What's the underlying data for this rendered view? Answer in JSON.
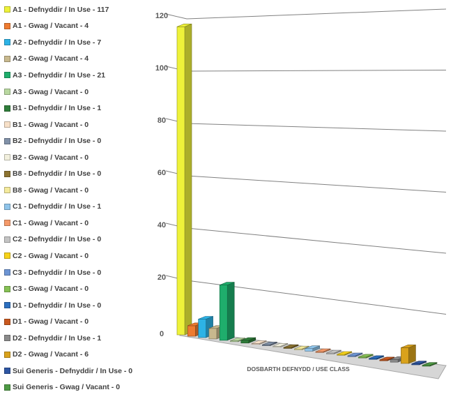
{
  "chart_data": {
    "type": "bar",
    "subtype": "3d-column",
    "xlabel": "DOSBARTH DEFNYDD / USE CLASS",
    "ylim": [
      0,
      120
    ],
    "yticks": [
      "0",
      "20",
      "40",
      "60",
      "80",
      "100",
      "120"
    ],
    "grid": true,
    "legend_position": "left",
    "series": [
      {
        "label": "A1 - Defnyddir / In Use -  117",
        "value": 117,
        "color": "#eef23a"
      },
      {
        "label": "A1 - Gwag / Vacant - 4",
        "value": 4,
        "color": "#ee7b30"
      },
      {
        "label": "A2 - Defnyddir / In Use - 7",
        "value": 7,
        "color": "#2db3e6"
      },
      {
        "label": "A2 - Gwag / Vacant - 4",
        "value": 4,
        "color": "#c8b98e"
      },
      {
        "label": "A3 - Defnyddir / In Use - 21",
        "value": 21,
        "color": "#1fae6c"
      },
      {
        "label": "A3 - Gwag / Vacant - 0",
        "value": 0,
        "color": "#b9d8a0"
      },
      {
        "label": "B1 - Defnyddir / In Use - 1",
        "value": 1,
        "color": "#2f7d3a"
      },
      {
        "label": "B1 - Gwag / Vacant - 0",
        "value": 0,
        "color": "#f7e0c8"
      },
      {
        "label": "B2 - Defnyddir / In Use - 0",
        "value": 0,
        "color": "#8191a8"
      },
      {
        "label": "B2 - Gwag / Vacant - 0",
        "value": 0,
        "color": "#f2f0de"
      },
      {
        "label": "B8 - Defnyddir / In Use - 0",
        "value": 0,
        "color": "#8c7330"
      },
      {
        "label": "B8 - Gwag / Vacant - 0",
        "value": 0,
        "color": "#f4ea9c"
      },
      {
        "label": "C1 - Defnyddir / In Use - 1",
        "value": 1,
        "color": "#8fc4ea"
      },
      {
        "label": "C1 - Gwag / Vacant - 0",
        "value": 0,
        "color": "#f59a6a"
      },
      {
        "label": "C2 - Defnyddir / In Use - 0",
        "value": 0,
        "color": "#c4c4c4"
      },
      {
        "label": "C2 - Gwag / Vacant - 0",
        "value": 0,
        "color": "#f7d31a"
      },
      {
        "label": "C3 - Defnyddir / In Use - 0",
        "value": 0,
        "color": "#6d95d4"
      },
      {
        "label": "C3 - Gwag / Vacant - 0",
        "value": 0,
        "color": "#86c154"
      },
      {
        "label": "D1 - Defnyddir / In Use - 0",
        "value": 0,
        "color": "#2c6fbf"
      },
      {
        "label": "D1 - Gwag / Vacant - 0",
        "value": 0,
        "color": "#c9581e"
      },
      {
        "label": "D2 - Defnyddir / In Use - 1",
        "value": 1,
        "color": "#8a8a8a"
      },
      {
        "label": "D2 - Gwag / Vacant - 6",
        "value": 6,
        "color": "#d9a21c"
      },
      {
        "label": "Sui Generis - Defnyddir / In Use - 0",
        "value": 0,
        "color": "#2e56a3"
      },
      {
        "label": "Sui Generis - Gwag / Vacant - 0",
        "value": 0,
        "color": "#4e9a44"
      }
    ]
  }
}
